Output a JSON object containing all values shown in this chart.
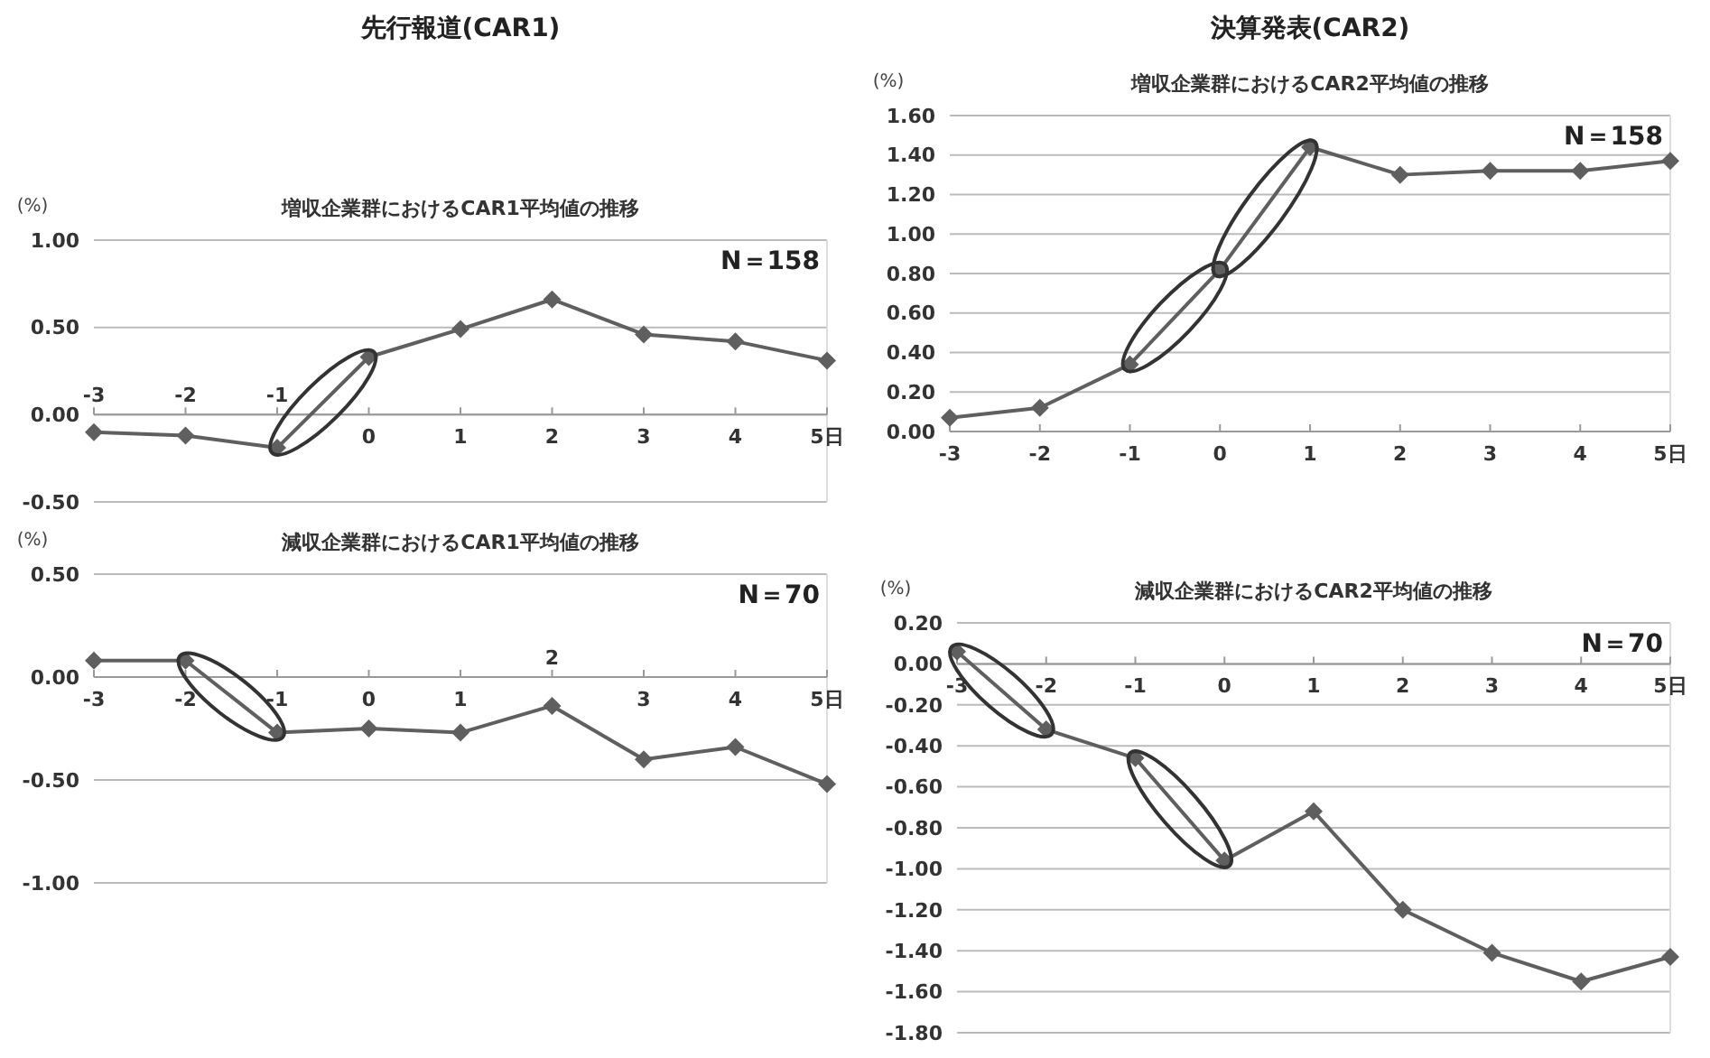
{
  "chart_data": [
    {
      "type": "line",
      "title": "先行報道(CAR1)",
      "subtitle": "増収企業群におけるCAR1平均値の推移",
      "ylabel": "(%)",
      "categories": [
        "-3",
        "-2",
        "-1",
        "0",
        "1",
        "2",
        "3",
        "4",
        "5日"
      ],
      "series": [
        {
          "color": "#5f5f5f",
          "values": [
            -0.1,
            -0.12,
            -0.19,
            0.33,
            0.49,
            0.66,
            0.46,
            0.42,
            0.31
          ]
        }
      ],
      "ylim": [
        -0.5,
        1
      ],
      "yticks": [
        {
          "value": -0.5,
          "label": "-0.50"
        },
        {
          "value": 0,
          "label": "0.00"
        },
        {
          "value": 0.5,
          "label": "0.50"
        },
        {
          "value": 1,
          "label": "1.00"
        }
      ],
      "grid": "y",
      "marker": "diamond",
      "annotations": [
        "N＝158"
      ]
    },
    {
      "type": "line",
      "title": "減収企業群におけるCAR1平均値の推移",
      "ylabel": "(%)",
      "categories": [
        "-3",
        "-2",
        "-1",
        "0",
        "1",
        "2",
        "3",
        "4",
        "5日"
      ],
      "series": [
        {
          "color": "#5f5f5f",
          "values": [
            0.08,
            0.08,
            -0.27,
            -0.25,
            -0.27,
            -0.14,
            -0.4,
            -0.34,
            -0.52
          ]
        }
      ],
      "ylim": [
        -1,
        0.5
      ],
      "yticks": [
        {
          "value": -1,
          "label": "-1.00"
        },
        {
          "value": -0.5,
          "label": "-0.50"
        },
        {
          "value": 0,
          "label": "0.00"
        },
        {
          "value": 0.5,
          "label": "0.50"
        }
      ],
      "grid": "y",
      "marker": "diamond",
      "annotations": [
        "N＝70"
      ]
    },
    {
      "type": "line",
      "title": "決算発表(CAR2)",
      "subtitle": "増収企業群におけるCAR2平均値の推移",
      "ylabel": "(%)",
      "categories": [
        "-3",
        "-2",
        "-1",
        "0",
        "1",
        "2",
        "3",
        "4",
        "5日"
      ],
      "series": [
        {
          "color": "#5f5f5f",
          "values": [
            0.07,
            0.12,
            0.34,
            0.82,
            1.44,
            1.3,
            1.32,
            1.32,
            1.37
          ]
        }
      ],
      "ylim": [
        0,
        1.6
      ],
      "yticks": [
        {
          "value": 0,
          "label": "0.00"
        },
        {
          "value": 0.2,
          "label": "0.20"
        },
        {
          "value": 0.4,
          "label": "0.40"
        },
        {
          "value": 0.6,
          "label": "0.60"
        },
        {
          "value": 0.8,
          "label": "0.80"
        },
        {
          "value": 1,
          "label": "1.00"
        },
        {
          "value": 1.2,
          "label": "1.20"
        },
        {
          "value": 1.4,
          "label": "1.40"
        },
        {
          "value": 1.6,
          "label": "1.60"
        }
      ],
      "grid": "y",
      "marker": "diamond",
      "annotations": [
        "N＝158"
      ]
    },
    {
      "type": "line",
      "title": "減収企業群におけるCAR2平均値の推移",
      "ylabel": "(%)",
      "categories": [
        "-3",
        "-2",
        "-1",
        "0",
        "1",
        "2",
        "3",
        "4",
        "5日"
      ],
      "series": [
        {
          "color": "#5f5f5f",
          "values": [
            0.06,
            -0.32,
            -0.46,
            -0.96,
            -0.72,
            -1.2,
            -1.41,
            -1.55,
            -1.43
          ]
        }
      ],
      "ylim": [
        -1.8,
        0.2
      ],
      "yticks": [
        {
          "value": -1.8,
          "label": "-1.80"
        },
        {
          "value": -1.6,
          "label": "-1.60"
        },
        {
          "value": -1.4,
          "label": "-1.40"
        },
        {
          "value": -1.2,
          "label": "-1.20"
        },
        {
          "value": -1,
          "label": "-1.00"
        },
        {
          "value": -0.8,
          "label": "-0.80"
        },
        {
          "value": -0.6,
          "label": "-0.60"
        },
        {
          "value": -0.4,
          "label": "-0.40"
        },
        {
          "value": -0.2,
          "label": "-0.20"
        },
        {
          "value": 0,
          "label": "0.00"
        },
        {
          "value": 0.2,
          "label": "0.20"
        }
      ],
      "grid": "y",
      "marker": "diamond",
      "annotations": [
        "N＝70"
      ]
    }
  ]
}
